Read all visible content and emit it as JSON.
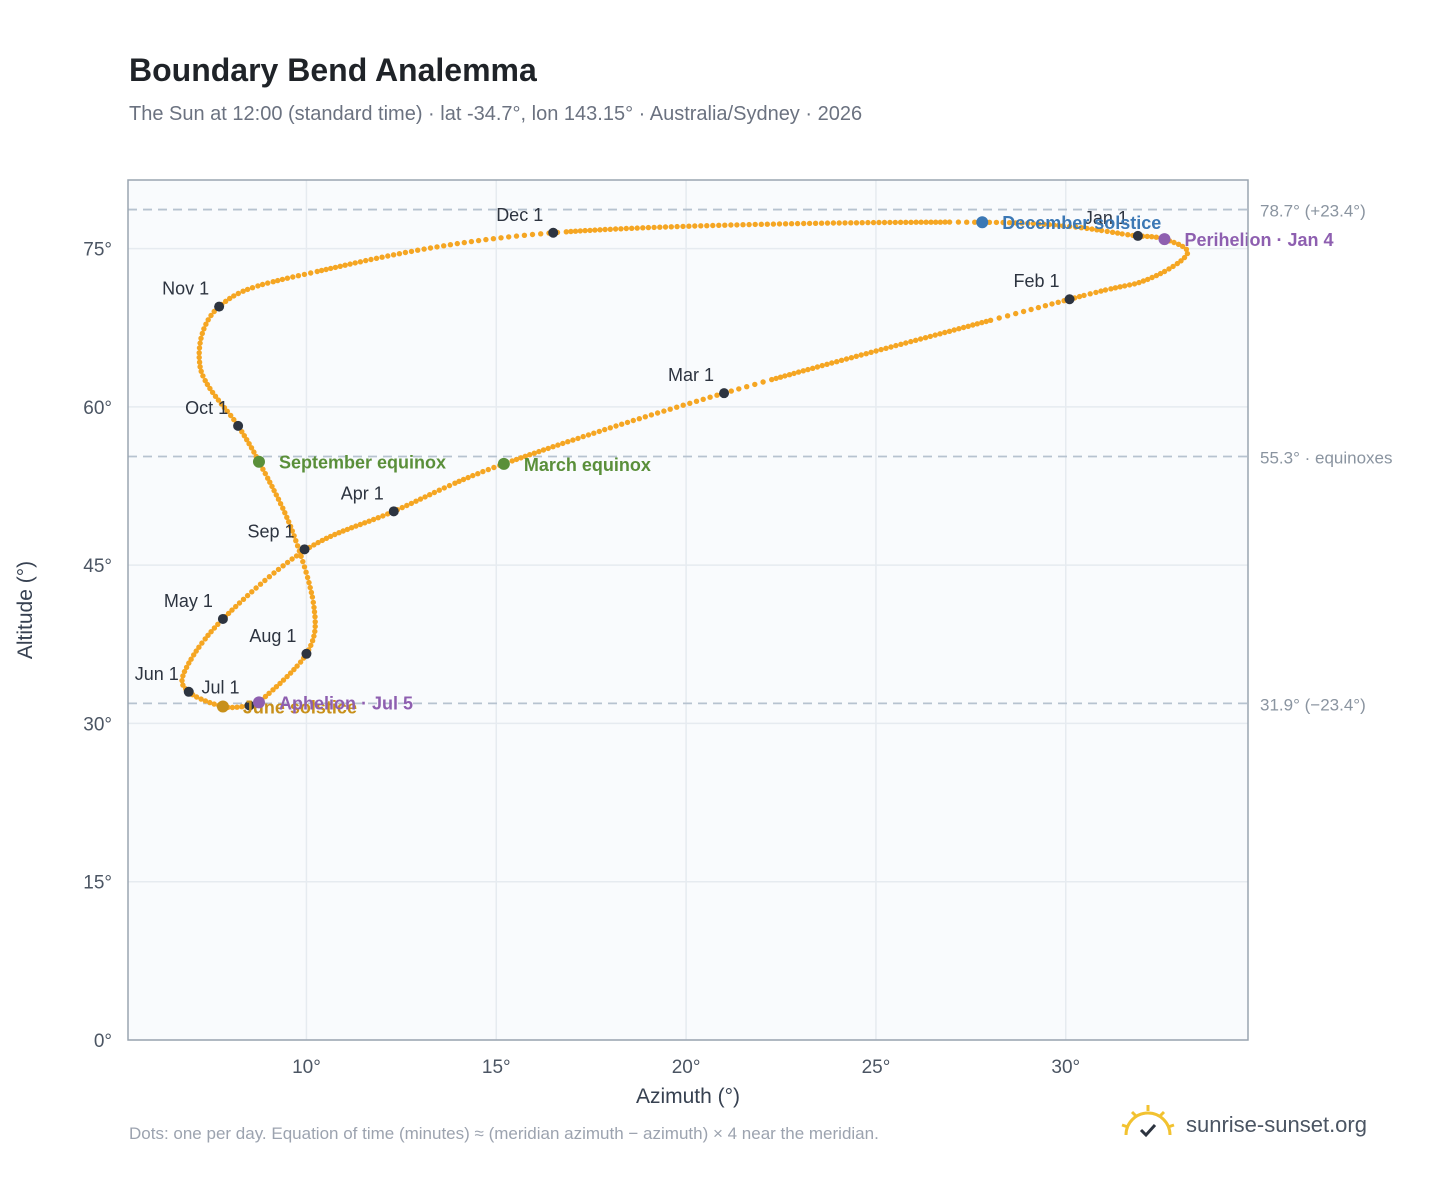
{
  "title": "Boundary Bend Analemma",
  "subtitle": "The Sun at 12:00 (standard time) · lat -34.7°, lon 143.15° · Australia/Sydney · 2026",
  "footnote": "Dots: one per day. Equation of time (minutes) ≈ (meridian azimuth − azimuth) × 4 near the meridian.",
  "brand": {
    "text": "sunrise-sunset.org",
    "icon": "sun-logo-icon"
  },
  "colors": {
    "curve": "#f5a623",
    "month_marker": "#2d3440",
    "equinox": "#5a8f3a",
    "december_solstice": "#3b78b5",
    "june_solstice": "#c8901a",
    "apsis": "#8e5fb0",
    "reference_line": "#b7c3d0",
    "plot_background": "#f9fbfd",
    "grid": "#e6ebf0"
  },
  "chart_data": {
    "type": "scatter",
    "title": "Boundary Bend Analemma",
    "xlabel": "Azimuth (°)",
    "ylabel": "Altitude (°)",
    "xlim": [
      5.3,
      34.8
    ],
    "ylim": [
      0,
      81.5
    ],
    "xticks": [
      10,
      15,
      20,
      25,
      30
    ],
    "yticks": [
      0,
      15,
      30,
      45,
      60,
      75
    ],
    "xtick_labels": [
      "10°",
      "15°",
      "20°",
      "25°",
      "30°"
    ],
    "ytick_labels": [
      "0°",
      "15°",
      "30°",
      "45°",
      "60°",
      "75°"
    ],
    "grid": true,
    "analemma_knots": [
      {
        "x": 31.9,
        "y": 76.2
      },
      {
        "x": 32.6,
        "y": 75.9
      },
      {
        "x": 33.2,
        "y": 74.5
      },
      {
        "x": 32.1,
        "y": 72.0
      },
      {
        "x": 30.1,
        "y": 70.2
      },
      {
        "x": 21.0,
        "y": 61.3
      },
      {
        "x": 15.2,
        "y": 54.6
      },
      {
        "x": 12.3,
        "y": 50.1
      },
      {
        "x": 10.0,
        "y": 46.5
      },
      {
        "x": 7.8,
        "y": 39.9
      },
      {
        "x": 6.8,
        "y": 35.0
      },
      {
        "x": 6.9,
        "y": 33.0
      },
      {
        "x": 7.8,
        "y": 31.6
      },
      {
        "x": 8.5,
        "y": 31.7
      },
      {
        "x": 8.75,
        "y": 32.0
      },
      {
        "x": 10.0,
        "y": 36.6
      },
      {
        "x": 10.2,
        "y": 41.0
      },
      {
        "x": 9.6,
        "y": 48.5
      },
      {
        "x": 8.75,
        "y": 54.8
      },
      {
        "x": 8.2,
        "y": 58.2
      },
      {
        "x": 7.2,
        "y": 63.8
      },
      {
        "x": 7.7,
        "y": 69.5
      },
      {
        "x": 10.0,
        "y": 72.6
      },
      {
        "x": 16.5,
        "y": 76.5
      },
      {
        "x": 27.8,
        "y": 77.5
      },
      {
        "x": 31.9,
        "y": 76.2
      }
    ],
    "month_markers": [
      {
        "label": "Jan 1",
        "x": 31.9,
        "y": 76.2
      },
      {
        "label": "Feb 1",
        "x": 30.1,
        "y": 70.2
      },
      {
        "label": "Mar 1",
        "x": 21.0,
        "y": 61.3
      },
      {
        "label": "Apr 1",
        "x": 12.3,
        "y": 50.1
      },
      {
        "label": "May 1",
        "x": 7.8,
        "y": 39.9
      },
      {
        "label": "Jun 1",
        "x": 6.9,
        "y": 33.0
      },
      {
        "label": "Jul 1",
        "x": 8.5,
        "y": 31.7
      },
      {
        "label": "Aug 1",
        "x": 10.0,
        "y": 36.6
      },
      {
        "label": "Sep 1",
        "x": 9.95,
        "y": 46.5
      },
      {
        "label": "Oct 1",
        "x": 8.2,
        "y": 58.2
      },
      {
        "label": "Nov 1",
        "x": 7.7,
        "y": 69.5
      },
      {
        "label": "Dec 1",
        "x": 16.5,
        "y": 76.5
      }
    ],
    "events": [
      {
        "label": "March equinox",
        "x": 15.2,
        "y": 54.6,
        "kind": "equinox"
      },
      {
        "label": "September equinox",
        "x": 8.75,
        "y": 54.8,
        "kind": "equinox"
      },
      {
        "label": "December solstice",
        "x": 27.8,
        "y": 77.5,
        "kind": "december_solstice"
      },
      {
        "label": "June solstice",
        "x": 7.8,
        "y": 31.6,
        "kind": "june_solstice"
      },
      {
        "label": "Perihelion · Jan 4",
        "x": 32.6,
        "y": 75.9,
        "kind": "apsis"
      },
      {
        "label": "Aphelion · Jul 5",
        "x": 8.75,
        "y": 32.0,
        "kind": "apsis"
      }
    ],
    "reference_lines": [
      {
        "y": 78.7,
        "label": "78.7° (+23.4°)"
      },
      {
        "y": 55.3,
        "label": "55.3° · equinoxes"
      },
      {
        "y": 31.9,
        "label": "31.9° (−23.4°)"
      }
    ]
  }
}
